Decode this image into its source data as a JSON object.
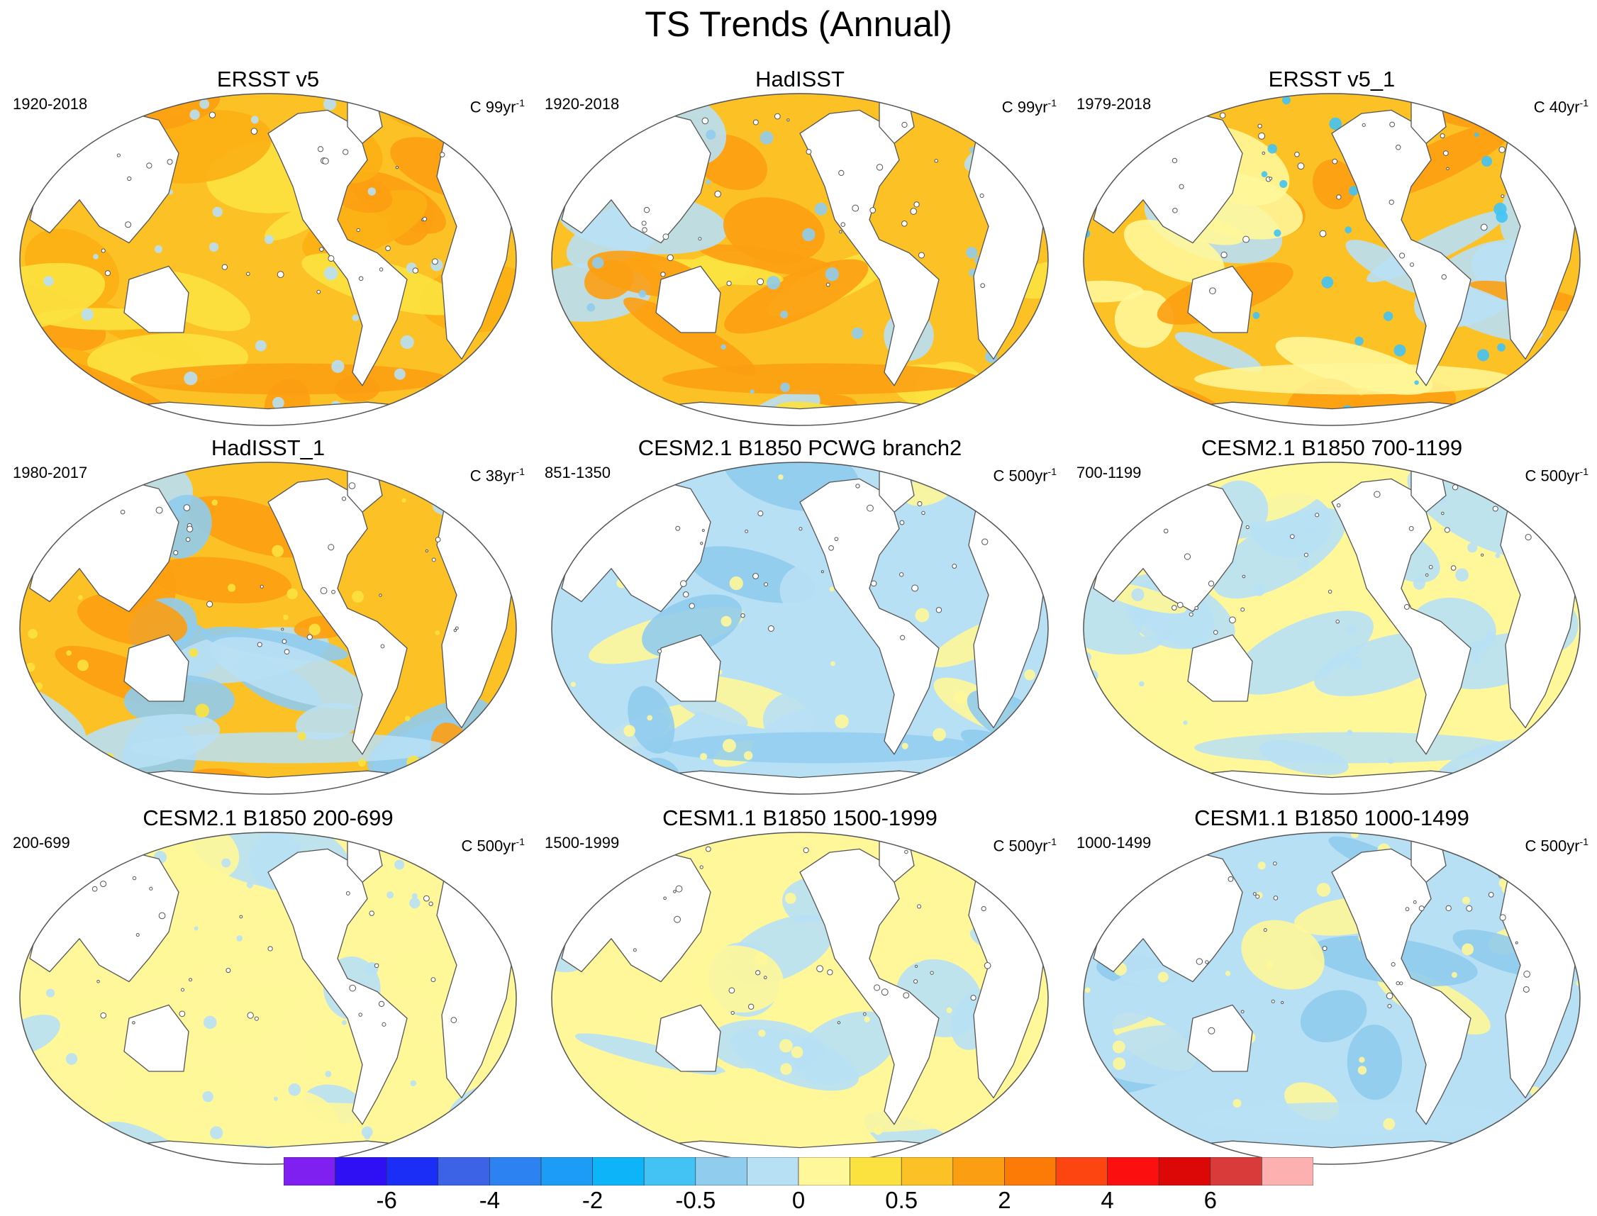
{
  "title": "TS Trends (Annual)",
  "colorbar": {
    "colors": [
      "#7f1ff0",
      "#2f10f5",
      "#1a2ef6",
      "#3c63e6",
      "#2b82f0",
      "#1d9cf5",
      "#0db4f8",
      "#43c3f4",
      "#90ccee",
      "#b8e0f5",
      "#fff799",
      "#fce23f",
      "#fcc125",
      "#fc9e12",
      "#fc7a06",
      "#fc4510",
      "#fc0f0f",
      "#dc0707",
      "#d93a3a",
      "#fdb0b0"
    ],
    "tick_labels": [
      "-6",
      "-4",
      "-2",
      "-0.5",
      "0",
      "0.5",
      "2",
      "4",
      "6"
    ],
    "tick_index": [
      2,
      4,
      6,
      8,
      10,
      12,
      14,
      16,
      18
    ]
  },
  "colors": {
    "land": "#ffffff",
    "coast": "#555555",
    "frame": "#555555"
  },
  "panels": [
    {
      "title": "ERSST v5",
      "period": "1920-2018",
      "units": "C 99yr",
      "units_exp": "-1",
      "palette": [
        "#fcc125",
        "#fcb014",
        "#fc9e12",
        "#fce23f"
      ],
      "speckle": "#b8e0f5"
    },
    {
      "title": "HadISST",
      "period": "1920-2018",
      "units": "C 99yr",
      "units_exp": "-1",
      "palette": [
        "#fcc125",
        "#fce23f",
        "#fc9e12",
        "#b8e0f5"
      ],
      "speckle": "#90ccee"
    },
    {
      "title": "ERSST v5_1",
      "period": "1979-2018",
      "units": "C 40yr",
      "units_exp": "-1",
      "palette": [
        "#fcc125",
        "#fc9e12",
        "#fff799",
        "#b8e0f5"
      ],
      "speckle": "#43c3f4"
    },
    {
      "title": "HadISST_1",
      "period": "1980-2017",
      "units": "C 38yr",
      "units_exp": "-1",
      "palette": [
        "#fcc125",
        "#fc9e12",
        "#b8e0f5",
        "#90ccee"
      ],
      "speckle": "#fce23f"
    },
    {
      "title": "CESM2.1 B1850 PCWG branch2",
      "period": "851-1350",
      "units": "C 500yr",
      "units_exp": "-1",
      "palette": [
        "#b8e0f5",
        "#b8e0f5",
        "#90ccee",
        "#fff799"
      ],
      "speckle": "#fff799"
    },
    {
      "title": "CESM2.1 B1850 700-1199",
      "period": "700-1199",
      "units": "C 500yr",
      "units_exp": "-1",
      "palette": [
        "#fff799",
        "#fff799",
        "#b8e0f5",
        "#b8e0f5"
      ],
      "speckle": "#b8e0f5"
    },
    {
      "title": "CESM2.1 B1850 200-699",
      "period": "200-699",
      "units": "C 500yr",
      "units_exp": "-1",
      "palette": [
        "#fff799",
        "#fff799",
        "#fff799",
        "#b8e0f5"
      ],
      "speckle": "#b8e0f5"
    },
    {
      "title": "CESM1.1 B1850 1500-1999",
      "period": "1500-1999",
      "units": "C 500yr",
      "units_exp": "-1",
      "palette": [
        "#fff799",
        "#b8e0f5",
        "#fff799",
        "#b8e0f5"
      ],
      "speckle": "#fff799"
    },
    {
      "title": "CESM1.1 B1850 1000-1499",
      "period": "1000-1499",
      "units": "C 500yr",
      "units_exp": "-1",
      "palette": [
        "#b8e0f5",
        "#fff799",
        "#b8e0f5",
        "#90ccee"
      ],
      "speckle": "#fff799"
    }
  ]
}
